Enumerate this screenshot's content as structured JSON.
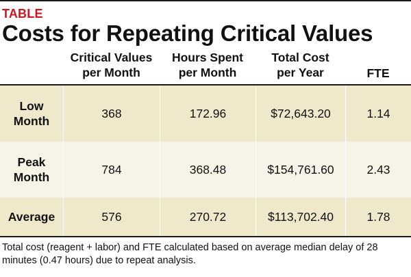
{
  "label": "TABLE",
  "title": "Costs for Repeating Critical Values",
  "columns": [
    "",
    "Critical Values\nper Month",
    "Hours Spent\nper Month",
    "Total Cost\nper Year",
    "FTE"
  ],
  "rows": [
    {
      "label": "Low\nMonth",
      "critical_values": "368",
      "hours": "172.96",
      "total_cost": "$72,643.20",
      "fte": "1.14"
    },
    {
      "label": "Peak\nMonth",
      "critical_values": "784",
      "hours": "368.48",
      "total_cost": "$154,761.60",
      "fte": "2.43"
    },
    {
      "label": "Average",
      "critical_values": "576",
      "hours": "270.72",
      "total_cost": "$113,702.40",
      "fte": "1.78"
    }
  ],
  "footnote": "Total cost (reagent + labor) and FTE calculated based on average median delay of 28 minutes (0.47 hours) due to repeat analysis.",
  "colors": {
    "label_red": "#d0131f",
    "row_tan": "#efe8cb",
    "row_light": "#f7f4e7",
    "rule": "#1a1a1a"
  }
}
